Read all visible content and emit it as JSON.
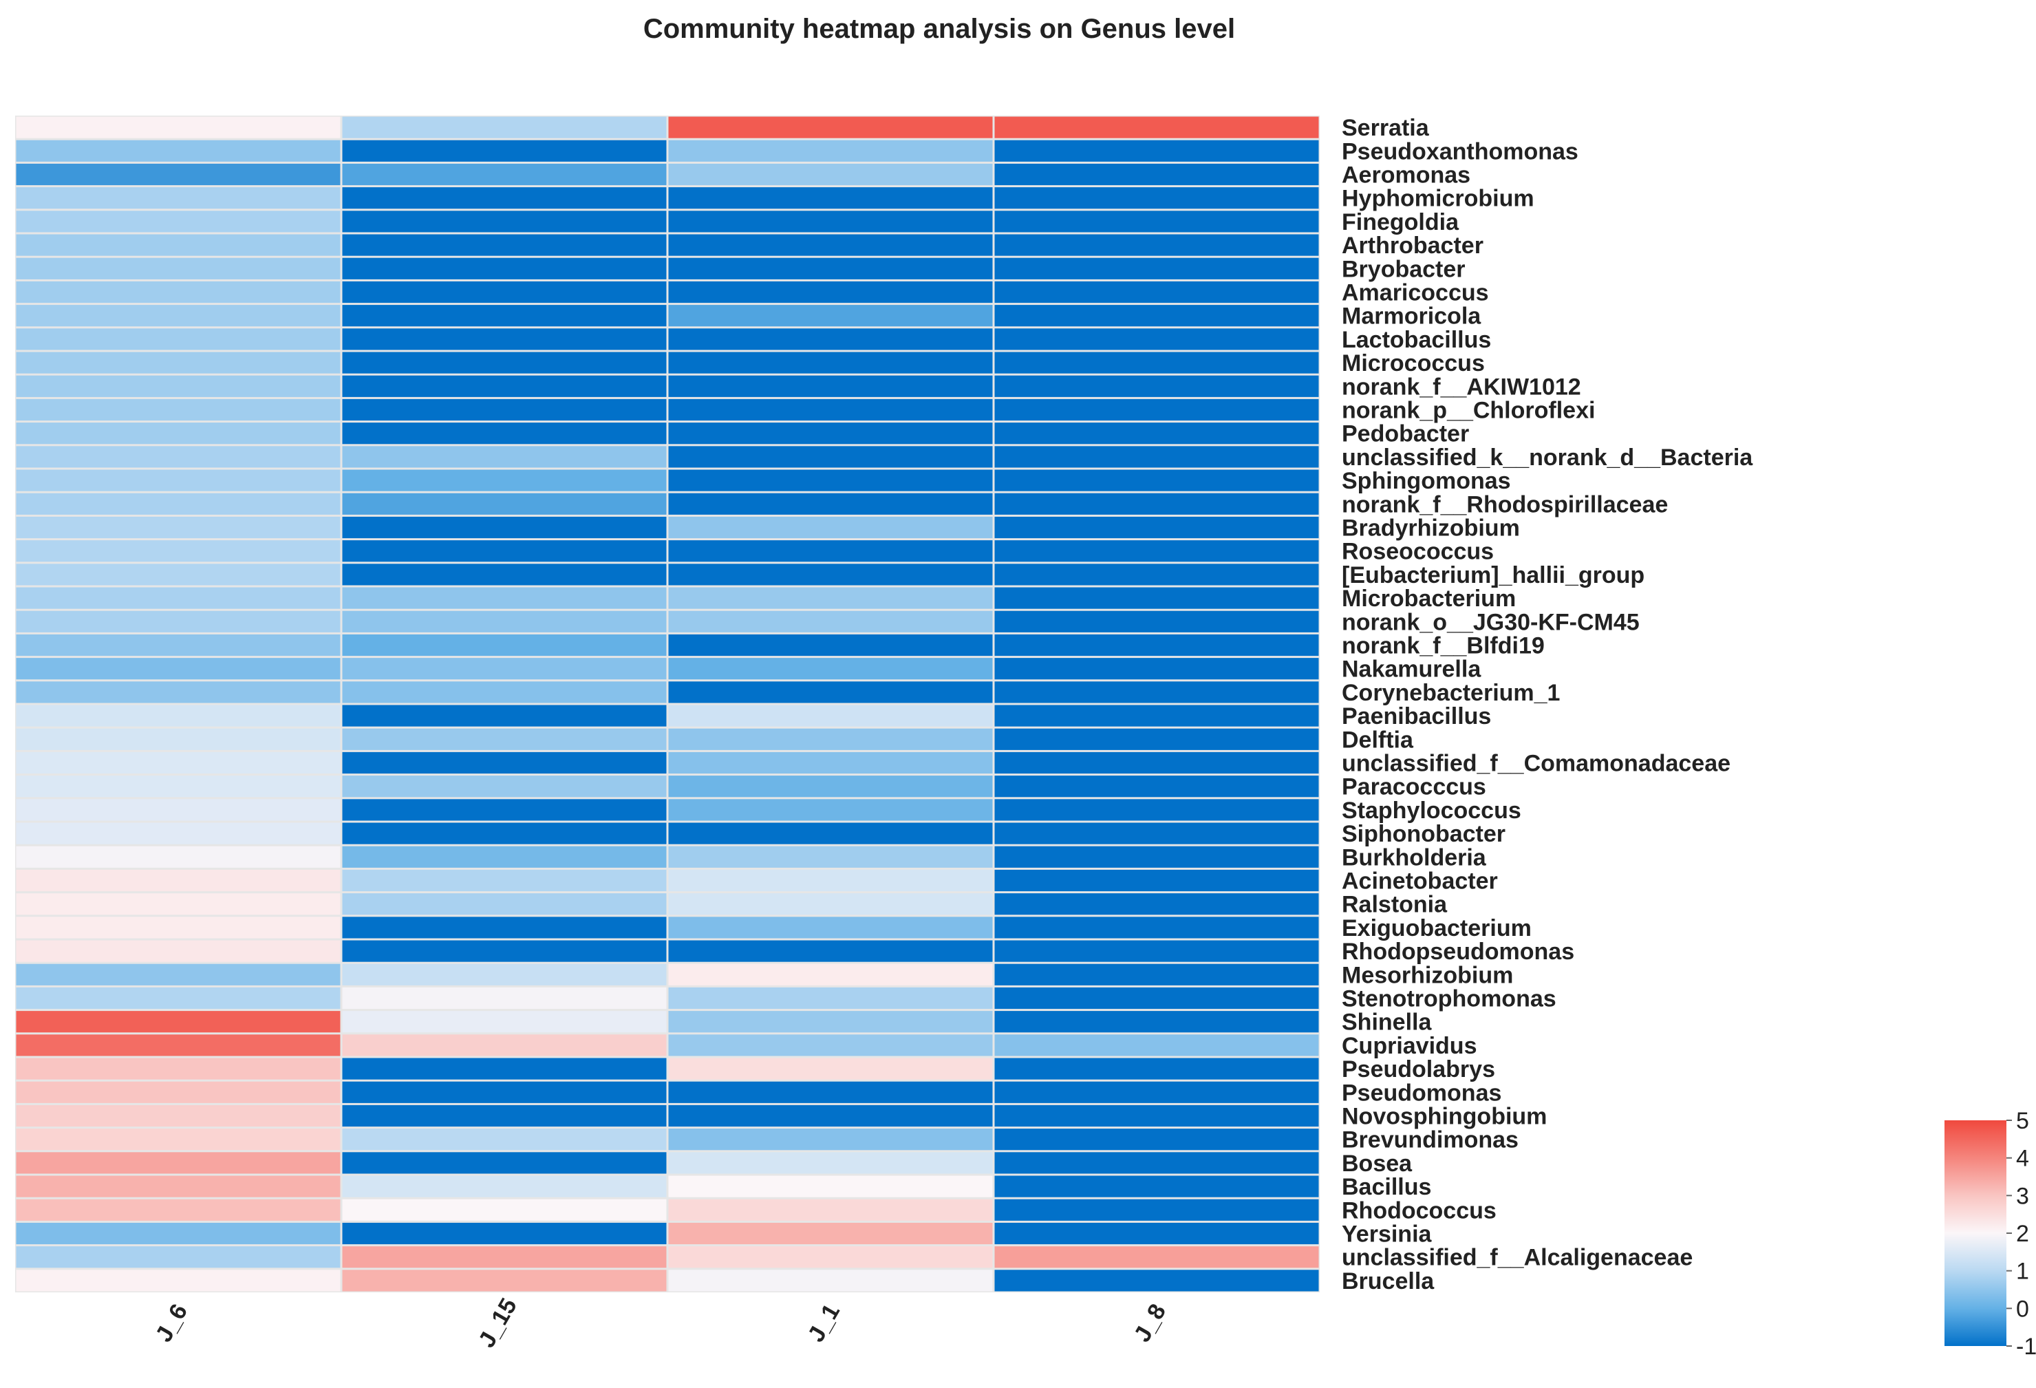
{
  "chart_data": {
    "type": "heatmap",
    "title": "Community heatmap analysis on Genus level",
    "columns": [
      "J_6",
      "J_15",
      "J_1",
      "J_8"
    ],
    "rows": [
      "Serratia",
      "Pseudoxanthomonas",
      "Aeromonas",
      "Hyphomicrobium",
      "Finegoldia",
      "Arthrobacter",
      "Bryobacter",
      "Amaricoccus",
      "Marmoricola",
      "Lactobacillus",
      "Micrococcus",
      "norank_f__AKIW1012",
      "norank_p__Chloroflexi",
      "Pedobacter",
      "unclassified_k__norank_d__Bacteria",
      "Sphingomonas",
      "norank_f__Rhodospirillaceae",
      "Bradyrhizobium",
      "Roseococcus",
      "[Eubacterium]_hallii_group",
      "Microbacterium",
      "norank_o__JG30-KF-CM45",
      "norank_f__Blfdi19",
      "Nakamurella",
      "Corynebacterium_1",
      "Paenibacillus",
      "Delftia",
      "unclassified_f__Comamonadaceae",
      "Paracocccus",
      "Staphylococcus",
      "Siphonobacter",
      "Burkholderia",
      "Acinetobacter",
      "Ralstonia",
      "Exiguobacterium",
      "Rhodopseudomonas",
      "Mesorhizobium",
      "Stenotrophomonas",
      "Shinella",
      "Cupriavidus",
      "Pseudolabrys",
      "Pseudomonas",
      "Novosphingobium",
      "Brevundimonas",
      "Bosea",
      "Bacillus",
      "Rhodococcus",
      "Yersinia",
      "unclassified_f__Alcaligenaceae",
      "Brucella"
    ],
    "values": [
      [
        2.1,
        0.9,
        4.7,
        4.7
      ],
      [
        0.5,
        -1.0,
        0.5,
        -1.0
      ],
      [
        -0.4,
        -0.2,
        0.6,
        -1.0
      ],
      [
        0.8,
        -1.0,
        -1.0,
        -1.0
      ],
      [
        0.8,
        -1.0,
        -1.0,
        -1.0
      ],
      [
        0.7,
        -1.0,
        -1.0,
        -1.0
      ],
      [
        0.7,
        -1.0,
        -1.0,
        -1.0
      ],
      [
        0.7,
        -1.0,
        -1.0,
        -1.0
      ],
      [
        0.7,
        -1.0,
        -0.2,
        -1.0
      ],
      [
        0.7,
        -1.0,
        -1.0,
        -1.0
      ],
      [
        0.7,
        -1.0,
        -1.0,
        -1.0
      ],
      [
        0.7,
        -1.0,
        -1.0,
        -1.0
      ],
      [
        0.7,
        -1.0,
        -1.0,
        -1.0
      ],
      [
        0.7,
        -1.0,
        -1.0,
        -1.0
      ],
      [
        0.8,
        0.5,
        -1.0,
        -1.0
      ],
      [
        0.8,
        0.0,
        -1.0,
        -1.0
      ],
      [
        0.8,
        -0.2,
        -1.0,
        -1.0
      ],
      [
        0.9,
        -1.0,
        0.5,
        -1.0
      ],
      [
        0.9,
        -1.0,
        -1.0,
        -1.0
      ],
      [
        0.9,
        -1.0,
        -1.0,
        -1.0
      ],
      [
        0.8,
        0.5,
        0.6,
        -1.0
      ],
      [
        0.8,
        0.5,
        0.6,
        -1.0
      ],
      [
        0.5,
        0.0,
        -1.0,
        -1.0
      ],
      [
        0.3,
        0.4,
        0.0,
        -1.0
      ],
      [
        0.5,
        0.4,
        -1.0,
        -1.0
      ],
      [
        1.4,
        -1.0,
        1.3,
        -1.0
      ],
      [
        1.4,
        0.6,
        0.5,
        -1.0
      ],
      [
        1.5,
        -1.0,
        0.4,
        -1.0
      ],
      [
        1.5,
        0.6,
        0.1,
        -1.0
      ],
      [
        1.6,
        -1.0,
        0.1,
        -1.0
      ],
      [
        1.6,
        -1.0,
        -1.0,
        -1.0
      ],
      [
        1.9,
        0.2,
        0.7,
        -1.0
      ],
      [
        2.3,
        0.9,
        1.4,
        -1.0
      ],
      [
        2.2,
        0.8,
        1.4,
        -1.0
      ],
      [
        2.2,
        -1.0,
        0.3,
        -1.0
      ],
      [
        2.3,
        -1.0,
        -1.0,
        -1.0
      ],
      [
        0.5,
        1.2,
        2.2,
        -1.0
      ],
      [
        0.9,
        1.9,
        0.8,
        -1.0
      ],
      [
        4.6,
        1.7,
        0.6,
        -1.0
      ],
      [
        4.4,
        2.8,
        0.6,
        0.4
      ],
      [
        3.0,
        -1.0,
        2.5,
        -1.0
      ],
      [
        3.0,
        -1.0,
        -1.0,
        -1.0
      ],
      [
        2.8,
        -1.0,
        -1.0,
        -1.0
      ],
      [
        2.7,
        1.0,
        0.4,
        -1.0
      ],
      [
        3.5,
        -1.0,
        1.4,
        -1.0
      ],
      [
        3.3,
        1.4,
        2.0,
        -1.0
      ],
      [
        3.1,
        2.0,
        2.6,
        -1.0
      ],
      [
        0.3,
        -1.0,
        3.3,
        -1.0
      ],
      [
        0.8,
        3.5,
        2.6,
        3.6
      ],
      [
        2.1,
        3.3,
        1.9,
        -1.0
      ]
    ],
    "color_scale": {
      "min": -1,
      "max": 5,
      "ticks": [
        "5",
        "4",
        "3",
        "2",
        "1",
        "0",
        "-1"
      ],
      "stops": [
        {
          "value": -1,
          "color": "#0271c9"
        },
        {
          "value": 0,
          "color": "#64b1e6"
        },
        {
          "value": 1,
          "color": "#bad9f2"
        },
        {
          "value": 2,
          "color": "#fbf6f8"
        },
        {
          "value": 3,
          "color": "#f9c5c2"
        },
        {
          "value": 4,
          "color": "#f5857d"
        },
        {
          "value": 5,
          "color": "#f0493e"
        }
      ]
    },
    "xlabel": "",
    "ylabel": ""
  }
}
